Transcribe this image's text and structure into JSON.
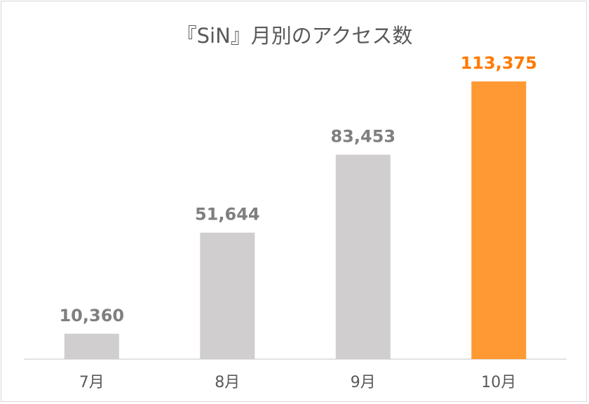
{
  "chart_data": {
    "type": "bar",
    "title": "『SiN』月別のアクセス数",
    "categories": [
      "7月",
      "8月",
      "9月",
      "10月"
    ],
    "values": [
      10360,
      51644,
      83453,
      113375
    ],
    "value_labels": [
      "10,360",
      "51,644",
      "83,453",
      "113,375"
    ],
    "xlabel": "",
    "ylabel": "",
    "ylim": [
      0,
      120000
    ],
    "grid": false,
    "legend": "none",
    "colors": {
      "default_bar": "#d0cece",
      "highlight_bar": "#ff9933",
      "default_label": "#7f7f7f",
      "highlight_label": "#ff7a00",
      "axis": "#d9d9d9"
    },
    "highlight_index": 3
  }
}
